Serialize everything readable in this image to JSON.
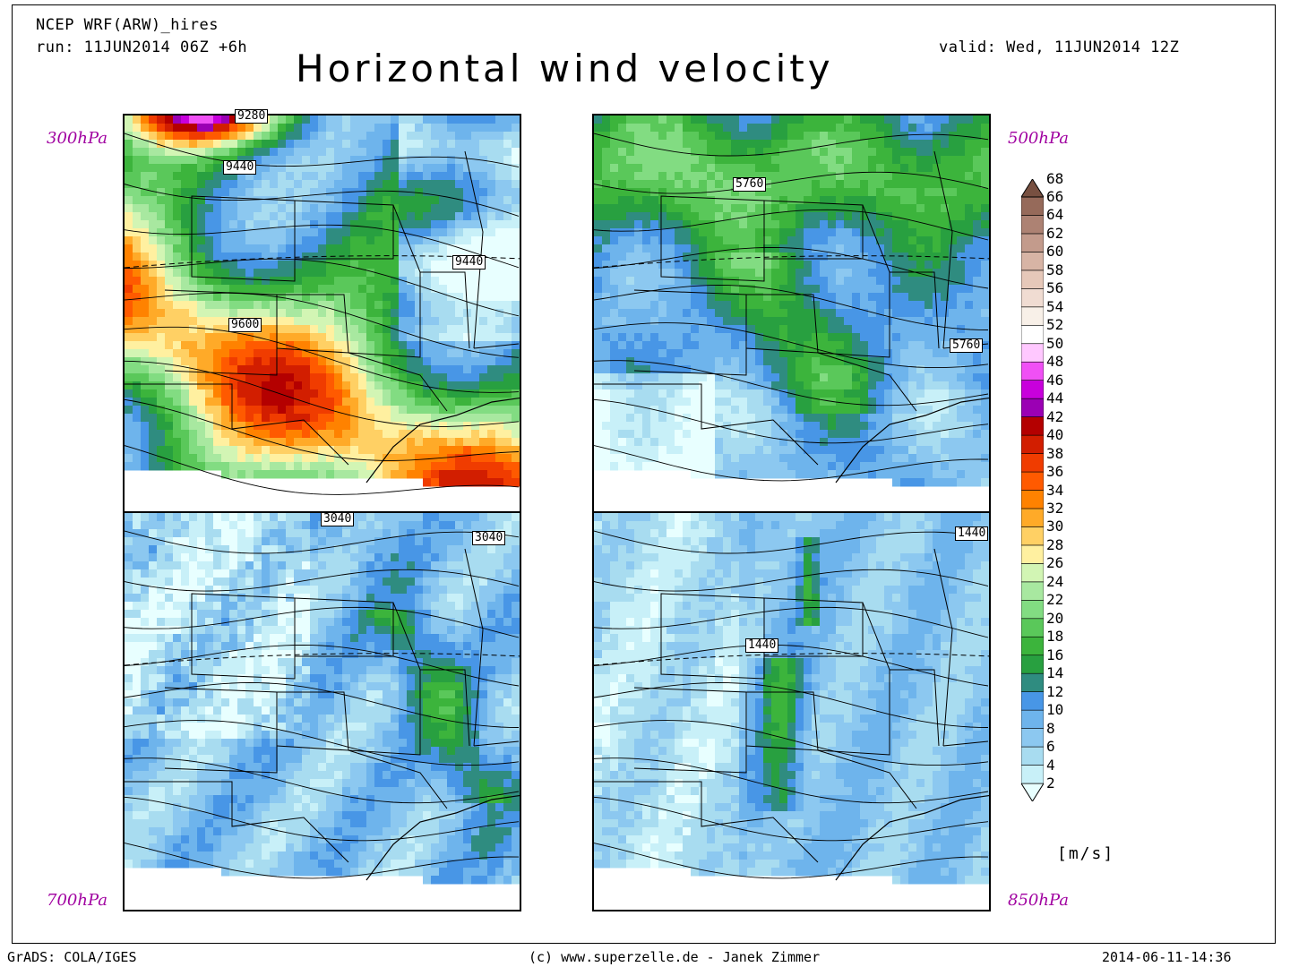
{
  "header": {
    "model": "NCEP WRF(ARW)_hires",
    "run": "run: 11JUN2014 06Z +6h",
    "valid": "valid: Wed, 11JUN2014 12Z",
    "title": "Horizontal wind velocity"
  },
  "panels": [
    {
      "level": "300hPa",
      "contour_labels": [
        "9280",
        "9440",
        "9440",
        "9600"
      ],
      "theme": "high"
    },
    {
      "level": "500hPa",
      "contour_labels": [
        "5760",
        "5760"
      ],
      "theme": "mid"
    },
    {
      "level": "700hPa",
      "contour_labels": [
        "3040",
        "3040"
      ],
      "theme": "low"
    },
    {
      "level": "850hPa",
      "contour_labels": [
        "1440",
        "1440"
      ],
      "theme": "lower"
    }
  ],
  "colorbar": {
    "unit": "[m/s]",
    "levels": [
      "2",
      "4",
      "6",
      "8",
      "10",
      "12",
      "14",
      "16",
      "18",
      "20",
      "22",
      "24",
      "26",
      "28",
      "30",
      "32",
      "34",
      "36",
      "38",
      "40",
      "42",
      "44",
      "46",
      "48",
      "50",
      "52",
      "54",
      "56",
      "58",
      "60",
      "62",
      "64",
      "66",
      "68"
    ],
    "colors": [
      "#e8ffff",
      "#c8f0f8",
      "#a8dcf0",
      "#8cc8f0",
      "#6eb4ec",
      "#4896e6",
      "#2f8c80",
      "#28a040",
      "#3cb43c",
      "#5ac85a",
      "#82dc82",
      "#a8e8a0",
      "#d2f5b4",
      "#fff0a0",
      "#ffd064",
      "#ffaa28",
      "#ff8200",
      "#ff5a00",
      "#f03c00",
      "#d21e00",
      "#b40000",
      "#9b00b4",
      "#c800dc",
      "#f050f5",
      "#ffc8ff",
      "#ffffff",
      "#f8f0e8",
      "#f0dcd2",
      "#e6c8b9",
      "#d7b4a5",
      "#c39b8c",
      "#ad8273",
      "#966a5a",
      "#785041"
    ]
  },
  "footer": {
    "left": "GrADS: COLA/IGES",
    "center": "(c) www.superzelle.de - Janek Zimmer",
    "right": "2014-06-11-14:36"
  }
}
